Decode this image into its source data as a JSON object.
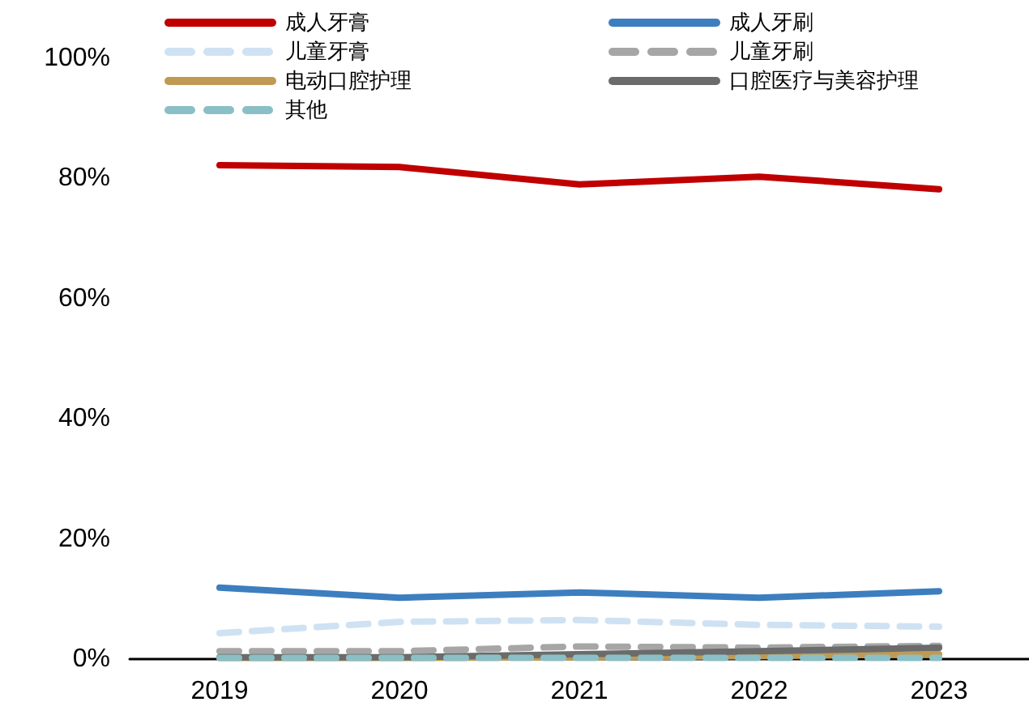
{
  "chart_data": {
    "type": "line",
    "categories": [
      "2019",
      "2020",
      "2021",
      "2022",
      "2023"
    ],
    "series": [
      {
        "name": "成人牙膏",
        "color": "#c00000",
        "line_style": "solid",
        "values": [
          82.2,
          81.9,
          79.0,
          80.3,
          78.2
        ]
      },
      {
        "name": "成人牙刷",
        "color": "#3d7ebf",
        "line_style": "solid",
        "values": [
          11.9,
          10.2,
          11.1,
          10.2,
          11.3
        ]
      },
      {
        "name": "儿童牙膏",
        "color": "#cfe2f3",
        "line_style": "dashed",
        "values": [
          4.3,
          6.2,
          6.5,
          5.7,
          5.4
        ]
      },
      {
        "name": "儿童牙刷",
        "color": "#a6a6a6",
        "line_style": "dashed",
        "values": [
          1.3,
          1.3,
          2.1,
          1.9,
          2.2
        ]
      },
      {
        "name": "电动口腔护理",
        "color": "#c09a53",
        "line_style": "solid",
        "values": [
          0.2,
          0.2,
          0.3,
          0.5,
          0.8
        ]
      },
      {
        "name": "口腔医疗与美容护理",
        "color": "#6b6b6b",
        "line_style": "solid",
        "values": [
          0.3,
          0.3,
          0.8,
          1.3,
          1.9
        ]
      },
      {
        "name": "其他",
        "color": "#8bbfc6",
        "line_style": "dashed",
        "values": [
          0.2,
          0.2,
          0.2,
          0.2,
          0.2
        ]
      }
    ],
    "ylim": [
      0,
      100
    ],
    "yticks": [
      {
        "value": 0,
        "label": "0%"
      },
      {
        "value": 20,
        "label": "20%"
      },
      {
        "value": 40,
        "label": "40%"
      },
      {
        "value": 60,
        "label": "60%"
      },
      {
        "value": 80,
        "label": "80%"
      },
      {
        "value": 100,
        "label": "100%"
      }
    ],
    "grid": false,
    "legend": "top",
    "marker": "none"
  }
}
